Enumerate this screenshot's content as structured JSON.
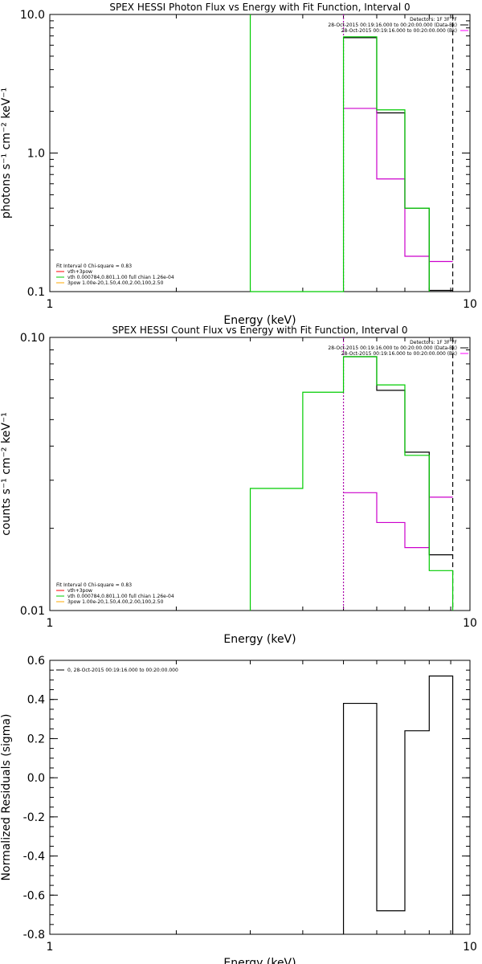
{
  "chart_data": [
    {
      "type": "line",
      "step": true,
      "title": "SPEX HESSI Photon Flux vs Energy with Fit Function, Interval 0",
      "xlabel": "Energy (keV)",
      "ylabel": "photons s⁻¹ cm⁻² keV⁻¹",
      "xscale": "log",
      "yscale": "log",
      "xlim": [
        1,
        10
      ],
      "ylim": [
        0.1,
        10
      ],
      "x_ticks": [
        {
          "v": 1,
          "label": "1"
        },
        {
          "v": 10,
          "label": "10"
        }
      ],
      "y_ticks": [
        {
          "v": 0.1,
          "label": "0.1"
        },
        {
          "v": 1,
          "label": "1.0"
        },
        {
          "v": 10,
          "label": "10.0"
        }
      ],
      "legend_topright": [
        {
          "text": "Detectors: 1F 3F 7F",
          "color": ""
        },
        {
          "text": "28-Oct-2015 00:19:16.000 to 00:20:00.000 (Data-Bk)",
          "color": "#000000"
        },
        {
          "text": "28-Oct-2015 00:19:16.000 to 00:20:00.000 (Bk)",
          "color": "#ff00ff"
        }
      ],
      "legend_bottomleft": [
        {
          "text": "Fit Interval 0   Chi-square = 0.83",
          "color": ""
        },
        {
          "text": "vth+3pow",
          "color": "#ff0000"
        },
        {
          "text": "vth 0.000784,0.801,1.00  full chian 1.26e-04",
          "color": "#00cc00"
        },
        {
          "text": "3pow 1.00e-20,1.50,4.00,2.00,100,2.50",
          "color": "#ffaa00"
        }
      ],
      "vlines": [
        {
          "x": 3.0,
          "color": "#00cc00",
          "style": "solid"
        },
        {
          "x": 5.0,
          "color": "#aa00aa",
          "style": "dotted"
        },
        {
          "x": 9.1,
          "color": "#000000",
          "style": "dashed"
        }
      ],
      "series": [
        {
          "color": "#000000",
          "edges": [
            5,
            6,
            7,
            8,
            9.1
          ],
          "values": [
            6.8,
            1.95,
            0.4,
            0.102
          ]
        },
        {
          "color": "#cc00cc",
          "edges": [
            5,
            6,
            7,
            8,
            9.1
          ],
          "values": [
            2.1,
            0.65,
            0.18,
            0.165
          ]
        },
        {
          "color": "#00cc00",
          "edges": [
            3,
            5,
            6,
            7,
            8
          ],
          "values": [
            0.1,
            6.9,
            2.05,
            0.4
          ],
          "drop_end": 0.1
        }
      ]
    },
    {
      "type": "line",
      "step": true,
      "title": "SPEX HESSI Count Flux vs Energy with Fit Function, Interval 0",
      "xlabel": "Energy (keV)",
      "ylabel": "counts s⁻¹ cm⁻² keV⁻¹",
      "xscale": "log",
      "yscale": "log",
      "xlim": [
        1,
        10
      ],
      "ylim": [
        0.01,
        0.1
      ],
      "x_ticks": [
        {
          "v": 1,
          "label": "1"
        },
        {
          "v": 10,
          "label": "10"
        }
      ],
      "y_ticks": [
        {
          "v": 0.01,
          "label": "0.01"
        },
        {
          "v": 0.1,
          "label": "0.10"
        }
      ],
      "legend_topright": [
        {
          "text": "Detectors: 1F 3F 7F",
          "color": ""
        },
        {
          "text": "28-Oct-2015 00:19:16.000 to 00:20:00.000 (Data-Bk)",
          "color": "#000000"
        },
        {
          "text": "28-Oct-2015 00:19:16.000 to 00:20:00.000 (Bk)",
          "color": "#ff00ff"
        }
      ],
      "legend_bottomleft": [
        {
          "text": "Fit Interval 0   Chi-square = 0.83",
          "color": ""
        },
        {
          "text": "vth+3pow",
          "color": "#ff0000"
        },
        {
          "text": "vth 0.000784,0.801,1.00  full chian 1.26e-04",
          "color": "#00cc00"
        },
        {
          "text": "3pow 1.00e-20,1.50,4.00,2.00,100,2.50",
          "color": "#ffaa00"
        }
      ],
      "vlines": [
        {
          "x": 5.0,
          "color": "#aa00aa",
          "style": "dotted"
        },
        {
          "x": 9.1,
          "color": "#000000",
          "style": "dashed"
        }
      ],
      "series": [
        {
          "color": "#000000",
          "edges": [
            5,
            6,
            7,
            8,
            9.1
          ],
          "values": [
            0.085,
            0.064,
            0.038,
            0.016
          ]
        },
        {
          "color": "#cc00cc",
          "edges": [
            5,
            6,
            7,
            8,
            9.1
          ],
          "values": [
            0.027,
            0.021,
            0.017,
            0.026
          ]
        },
        {
          "color": "#00cc00",
          "edges": [
            3,
            4,
            5,
            6,
            7,
            8,
            9.1
          ],
          "values": [
            0.028,
            0.063,
            0.085,
            0.067,
            0.037,
            0.014
          ],
          "start_from": 0.01,
          "drop_end": 0.01
        }
      ]
    },
    {
      "type": "line",
      "step": true,
      "title": "",
      "xlabel": "Energy (keV)",
      "ylabel": "Normalized Residuals (sigma)",
      "xscale": "log",
      "yscale": "linear",
      "xlim": [
        1,
        10
      ],
      "ylim": [
        -0.8,
        0.6
      ],
      "x_ticks": [
        {
          "v": 1,
          "label": "1"
        },
        {
          "v": 10,
          "label": "10"
        }
      ],
      "y_ticks": [
        {
          "v": 0.6,
          "label": "0.6"
        },
        {
          "v": 0.4,
          "label": "0.4"
        },
        {
          "v": 0.2,
          "label": "0.2"
        },
        {
          "v": 0.0,
          "label": "0.0"
        },
        {
          "v": -0.2,
          "label": "-0.2"
        },
        {
          "v": -0.4,
          "label": "-0.4"
        },
        {
          "v": -0.6,
          "label": "-0.6"
        },
        {
          "v": -0.8,
          "label": "-0.8"
        }
      ],
      "legend_topleft": [
        {
          "text": "0, 28-Oct-2015 00:19:16.000 to 00:20:00.000",
          "color": "#000000"
        }
      ],
      "vlines": [],
      "series": [
        {
          "color": "#000000",
          "edges": [
            5,
            6,
            7,
            8,
            9.1
          ],
          "values": [
            0.38,
            -0.68,
            0.24,
            0.52
          ],
          "start_from": -0.8,
          "drop_end": -0.8
        }
      ]
    }
  ]
}
